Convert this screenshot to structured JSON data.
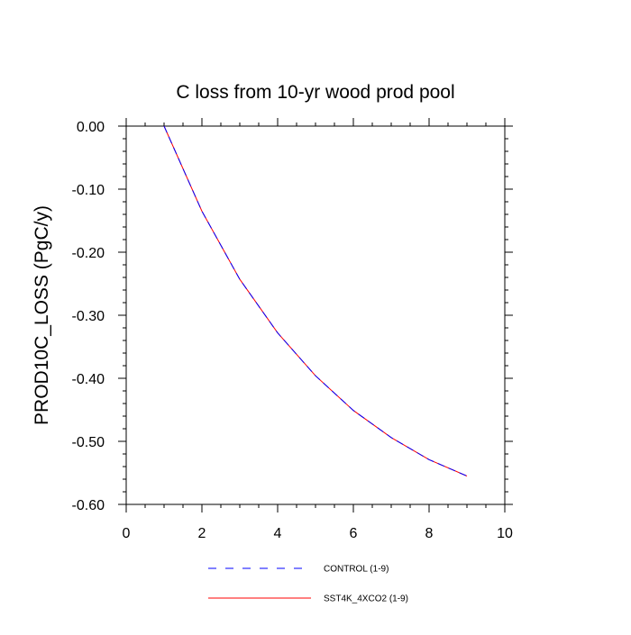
{
  "chart_data": {
    "type": "line",
    "title": "C loss from 10-yr wood prod pool",
    "xlabel": "",
    "ylabel": "PROD10C_LOSS  (PgC/y)",
    "xlim": [
      0,
      10
    ],
    "ylim": [
      -0.6,
      0.0
    ],
    "grid": false,
    "legend_position": "bottom-center",
    "x_ticks": [
      "0",
      "2",
      "4",
      "6",
      "8",
      "10"
    ],
    "y_ticks": [
      "0.00",
      "-0.10",
      "-0.20",
      "-0.30",
      "-0.40",
      "-0.50",
      "-0.60"
    ],
    "x": [
      1,
      2,
      3,
      4,
      5,
      6,
      7,
      8,
      9
    ],
    "series": [
      {
        "name": "CONTROL (1-9)",
        "color": "#0000ff",
        "dash": "dashed",
        "values": [
          0.0,
          -0.135,
          -0.243,
          -0.328,
          -0.396,
          -0.451,
          -0.494,
          -0.529,
          -0.555
        ]
      },
      {
        "name": "SST4K_4XCO2 (1-9)",
        "color": "#ff0000",
        "dash": "solid",
        "values": [
          0.0,
          -0.135,
          -0.243,
          -0.328,
          -0.396,
          -0.451,
          -0.494,
          -0.529,
          -0.555
        ]
      }
    ]
  }
}
